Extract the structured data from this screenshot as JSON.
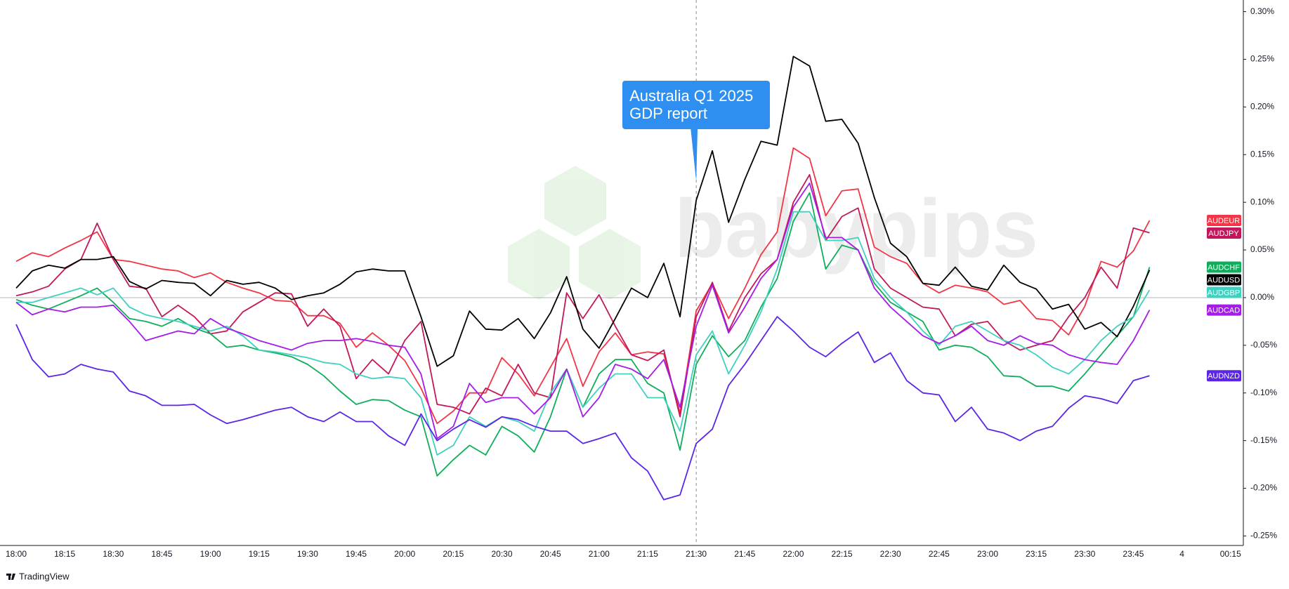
{
  "chart_data": {
    "type": "line",
    "annotation": {
      "text": "Australia Q1 2025 GDP report",
      "x": "21:30"
    },
    "watermark": "babypips",
    "footer": "TradingView",
    "categories": [
      "18:00",
      null,
      null,
      "18:15",
      null,
      null,
      "18:30",
      null,
      null,
      "18:45",
      null,
      null,
      "19:00",
      null,
      null,
      "19:15",
      null,
      null,
      "19:30",
      null,
      null,
      "19:45",
      null,
      null,
      "20:00",
      null,
      null,
      "20:15",
      null,
      null,
      "20:30",
      null,
      null,
      "20:45",
      null,
      null,
      "21:00",
      null,
      null,
      "21:15",
      null,
      null,
      "21:30",
      null,
      null,
      "21:45",
      null,
      null,
      "22:00",
      null,
      null,
      "22:15",
      null,
      null,
      "22:30",
      null,
      null,
      "22:45",
      null,
      null,
      "23:00",
      null,
      null,
      "23:15",
      null,
      null,
      "23:30",
      null,
      null,
      "23:45",
      null,
      null,
      "4",
      null,
      null,
      "00:15"
    ],
    "ylim": [
      -0.26,
      0.31
    ],
    "yticks": [
      {
        "value": 0.3,
        "label": "0.30%"
      },
      {
        "value": 0.25,
        "label": "0.25%"
      },
      {
        "value": 0.2,
        "label": "0.20%"
      },
      {
        "value": 0.15,
        "label": "0.15%"
      },
      {
        "value": 0.1,
        "label": "0.10%"
      },
      {
        "value": 0.05,
        "label": "0.05%"
      },
      {
        "value": 0,
        "label": "0.00%"
      },
      {
        "value": -0.05,
        "label": "-0.05%"
      },
      {
        "value": -0.1,
        "label": "-0.10%"
      },
      {
        "value": -0.15,
        "label": "-0.15%"
      },
      {
        "value": -0.2,
        "label": "-0.20%"
      },
      {
        "value": -0.25,
        "label": "-0.25%"
      }
    ],
    "series": [
      {
        "name": "AUDEUR",
        "color": "#f23645",
        "values": [
          0.038,
          0.047,
          0.043,
          0.052,
          0.06,
          0.069,
          0.04,
          0.038,
          0.034,
          0.03,
          0.028,
          0.021,
          0.026,
          0.016,
          0.01,
          0.005,
          -0.003,
          -0.004,
          -0.019,
          -0.019,
          -0.027,
          -0.052,
          -0.037,
          -0.05,
          -0.066,
          -0.095,
          -0.132,
          -0.119,
          -0.1,
          -0.1,
          -0.063,
          -0.08,
          -0.103,
          -0.073,
          -0.043,
          -0.093,
          -0.057,
          -0.037,
          -0.06,
          -0.057,
          -0.059,
          -0.121,
          -0.014,
          0.015,
          -0.022,
          0.01,
          0.045,
          0.069,
          0.157,
          0.146,
          0.086,
          0.112,
          0.114,
          0.053,
          0.043,
          0.036,
          0.015,
          0.005,
          0.013,
          0.01,
          0.006,
          -0.007,
          -0.003,
          -0.022,
          -0.024,
          -0.039,
          -0.009,
          0.038,
          0.032,
          0.049,
          0.081,
          null,
          null,
          null,
          null,
          null
        ]
      },
      {
        "name": "AUDJPY",
        "color": "#c2185b",
        "values": [
          0.002,
          0.006,
          0.012,
          0.03,
          0.04,
          0.078,
          0.04,
          0.012,
          0.01,
          -0.02,
          -0.008,
          -0.02,
          -0.038,
          -0.035,
          -0.015,
          -0.005,
          0.005,
          0.004,
          -0.03,
          -0.012,
          -0.03,
          -0.085,
          -0.065,
          -0.08,
          -0.045,
          -0.025,
          -0.112,
          -0.115,
          -0.122,
          -0.095,
          -0.103,
          -0.07,
          -0.1,
          -0.105,
          0.005,
          -0.022,
          0.003,
          -0.03,
          -0.06,
          -0.066,
          -0.055,
          -0.125,
          -0.02,
          0.016,
          -0.035,
          0.0,
          0.025,
          0.04,
          0.1,
          0.129,
          0.06,
          0.085,
          0.094,
          0.03,
          0.01,
          0.0,
          -0.01,
          -0.012,
          -0.04,
          -0.028,
          -0.025,
          -0.045,
          -0.055,
          -0.05,
          -0.045,
          -0.02,
          0.0,
          0.032,
          0.01,
          0.073,
          0.068,
          null,
          null,
          null,
          null,
          null
        ]
      },
      {
        "name": "AUDCHF",
        "color": "#0fae5b",
        "values": [
          -0.002,
          -0.008,
          -0.012,
          -0.005,
          0.002,
          0.01,
          -0.005,
          -0.022,
          -0.025,
          -0.03,
          -0.022,
          -0.032,
          -0.038,
          -0.052,
          -0.05,
          -0.055,
          -0.058,
          -0.062,
          -0.07,
          -0.082,
          -0.098,
          -0.112,
          -0.107,
          -0.108,
          -0.118,
          -0.125,
          -0.187,
          -0.17,
          -0.155,
          -0.165,
          -0.135,
          -0.145,
          -0.162,
          -0.125,
          -0.075,
          -0.115,
          -0.08,
          -0.065,
          -0.065,
          -0.09,
          -0.1,
          -0.16,
          -0.07,
          -0.04,
          -0.062,
          -0.045,
          -0.01,
          0.02,
          0.08,
          0.11,
          0.03,
          0.055,
          0.05,
          0.015,
          -0.005,
          -0.015,
          -0.025,
          -0.055,
          -0.05,
          -0.052,
          -0.062,
          -0.082,
          -0.083,
          -0.093,
          -0.093,
          -0.098,
          -0.08,
          -0.06,
          -0.04,
          -0.02,
          0.032,
          null,
          null,
          null,
          null,
          null
        ]
      },
      {
        "name": "AUDUSD",
        "color": "#000000",
        "values": [
          0.01,
          0.028,
          0.034,
          0.031,
          0.04,
          0.04,
          0.043,
          0.017,
          0.009,
          0.018,
          0.016,
          0.015,
          0.002,
          0.018,
          0.014,
          0.016,
          0.01,
          -0.002,
          0.002,
          0.005,
          0.014,
          0.027,
          0.03,
          0.028,
          0.028,
          -0.02,
          -0.072,
          -0.061,
          -0.014,
          -0.033,
          -0.034,
          -0.022,
          -0.043,
          -0.016,
          0.022,
          -0.033,
          -0.053,
          -0.022,
          0.01,
          0.0,
          0.036,
          -0.02,
          0.102,
          0.154,
          0.079,
          0.124,
          0.164,
          0.16,
          0.253,
          0.243,
          0.185,
          0.187,
          0.162,
          0.105,
          0.057,
          0.043,
          0.015,
          0.013,
          0.032,
          0.012,
          0.008,
          0.034,
          0.016,
          0.009,
          -0.012,
          -0.007,
          -0.033,
          -0.026,
          -0.041,
          -0.009,
          0.029,
          null,
          null,
          null,
          null,
          null
        ]
      },
      {
        "name": "AUDGBP",
        "color": "#3fd1c0",
        "values": [
          -0.005,
          -0.005,
          0.0,
          0.005,
          0.01,
          0.003,
          0.01,
          -0.01,
          -0.018,
          -0.022,
          -0.025,
          -0.03,
          -0.035,
          -0.03,
          -0.04,
          -0.055,
          -0.057,
          -0.06,
          -0.063,
          -0.068,
          -0.07,
          -0.08,
          -0.085,
          -0.083,
          -0.085,
          -0.105,
          -0.165,
          -0.155,
          -0.125,
          -0.135,
          -0.125,
          -0.13,
          -0.14,
          -0.1,
          -0.075,
          -0.115,
          -0.095,
          -0.08,
          -0.08,
          -0.105,
          -0.105,
          -0.14,
          -0.06,
          -0.035,
          -0.08,
          -0.05,
          -0.015,
          0.03,
          0.09,
          0.09,
          0.06,
          0.06,
          0.063,
          0.02,
          0.0,
          -0.015,
          -0.035,
          -0.05,
          -0.03,
          -0.025,
          -0.035,
          -0.045,
          -0.05,
          -0.06,
          -0.073,
          -0.08,
          -0.065,
          -0.045,
          -0.03,
          -0.02,
          0.008,
          null,
          null,
          null,
          null,
          null
        ]
      },
      {
        "name": "AUDCAD",
        "color": "#a31ce8",
        "values": [
          -0.005,
          -0.018,
          -0.012,
          -0.015,
          -0.01,
          -0.01,
          -0.008,
          -0.025,
          -0.045,
          -0.04,
          -0.035,
          -0.038,
          -0.022,
          -0.032,
          -0.038,
          -0.045,
          -0.05,
          -0.055,
          -0.048,
          -0.045,
          -0.045,
          -0.043,
          -0.046,
          -0.05,
          -0.052,
          -0.08,
          -0.148,
          -0.135,
          -0.09,
          -0.11,
          -0.105,
          -0.105,
          -0.122,
          -0.105,
          -0.075,
          -0.125,
          -0.105,
          -0.07,
          -0.075,
          -0.085,
          -0.065,
          -0.115,
          -0.03,
          0.013,
          -0.037,
          -0.01,
          0.02,
          0.04,
          0.095,
          0.12,
          0.063,
          0.063,
          0.05,
          0.01,
          -0.01,
          -0.025,
          -0.04,
          -0.048,
          -0.04,
          -0.03,
          -0.045,
          -0.05,
          -0.04,
          -0.048,
          -0.05,
          -0.06,
          -0.065,
          -0.068,
          -0.07,
          -0.045,
          -0.013,
          null,
          null,
          null,
          null,
          null
        ]
      },
      {
        "name": "AUDNZD",
        "color": "#5b25e8",
        "values": [
          -0.028,
          -0.065,
          -0.083,
          -0.08,
          -0.07,
          -0.075,
          -0.078,
          -0.098,
          -0.103,
          -0.113,
          -0.113,
          -0.112,
          -0.123,
          -0.132,
          -0.128,
          -0.123,
          -0.118,
          -0.115,
          -0.125,
          -0.13,
          -0.12,
          -0.13,
          -0.13,
          -0.145,
          -0.155,
          -0.122,
          -0.15,
          -0.138,
          -0.128,
          -0.136,
          -0.125,
          -0.128,
          -0.135,
          -0.14,
          -0.14,
          -0.153,
          -0.148,
          -0.142,
          -0.168,
          -0.182,
          -0.212,
          -0.207,
          -0.153,
          -0.138,
          -0.092,
          -0.07,
          -0.045,
          -0.02,
          -0.035,
          -0.052,
          -0.062,
          -0.048,
          -0.036,
          -0.068,
          -0.058,
          -0.087,
          -0.1,
          -0.102,
          -0.13,
          -0.115,
          -0.138,
          -0.142,
          -0.15,
          -0.14,
          -0.135,
          -0.116,
          -0.103,
          -0.106,
          -0.111,
          -0.087,
          -0.082,
          null,
          null,
          null,
          null,
          null
        ]
      }
    ]
  }
}
